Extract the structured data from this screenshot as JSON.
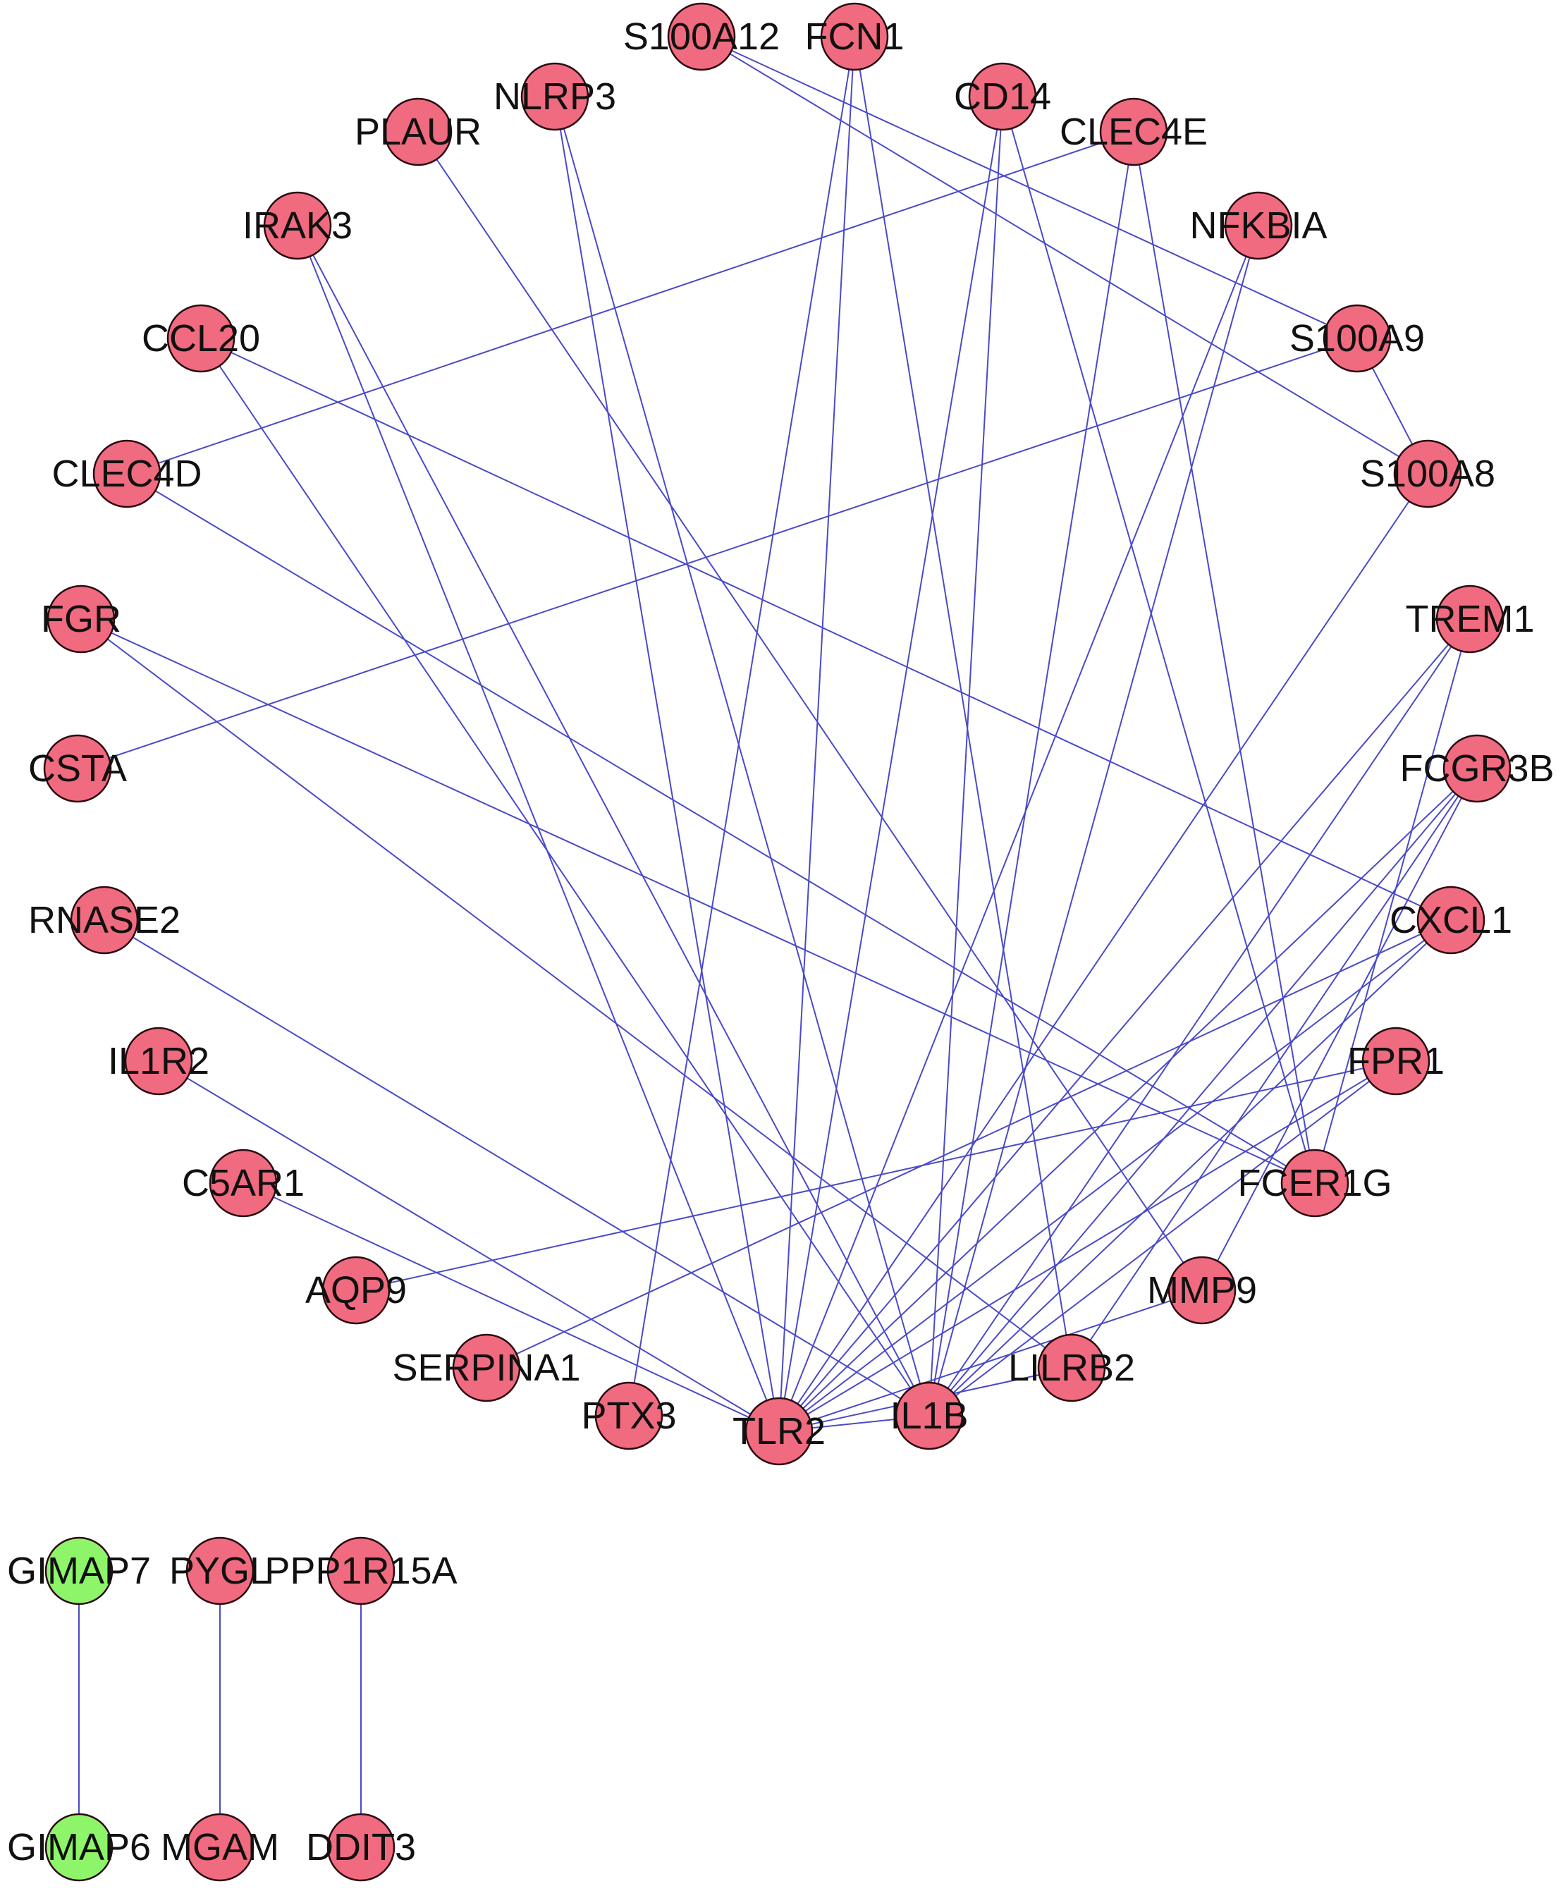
{
  "colors": {
    "up_node": "#f06b7f",
    "down_node": "#8ef56b",
    "edge": "#4a4ac8",
    "node_stroke": "#2a0a10"
  },
  "nodes": [
    {
      "id": "S100A12",
      "label": "S100A12",
      "group": "up"
    },
    {
      "id": "FCN1",
      "label": "FCN1",
      "group": "up"
    },
    {
      "id": "NLRP3",
      "label": "NLRP3",
      "group": "up"
    },
    {
      "id": "CD14",
      "label": "CD14",
      "group": "up"
    },
    {
      "id": "PLAUR",
      "label": "PLAUR",
      "group": "up"
    },
    {
      "id": "CLEC4E",
      "label": "CLEC4E",
      "group": "up"
    },
    {
      "id": "IRAK3",
      "label": "IRAK3",
      "group": "up"
    },
    {
      "id": "NFKBIA",
      "label": "NFKBIA",
      "group": "up"
    },
    {
      "id": "CCL20",
      "label": "CCL20",
      "group": "up"
    },
    {
      "id": "S100A9",
      "label": "S100A9",
      "group": "up"
    },
    {
      "id": "CLEC4D",
      "label": "CLEC4D",
      "group": "up"
    },
    {
      "id": "S100A8",
      "label": "S100A8",
      "group": "up"
    },
    {
      "id": "FGR",
      "label": "FGR",
      "group": "up"
    },
    {
      "id": "TREM1",
      "label": "TREM1",
      "group": "up"
    },
    {
      "id": "CSTA",
      "label": "CSTA",
      "group": "up"
    },
    {
      "id": "FCGR3B",
      "label": "FCGR3B",
      "group": "up"
    },
    {
      "id": "RNASE2",
      "label": "RNASE2",
      "group": "up"
    },
    {
      "id": "CXCL1",
      "label": "CXCL1",
      "group": "up"
    },
    {
      "id": "IL1R2",
      "label": "IL1R2",
      "group": "up"
    },
    {
      "id": "FPR1",
      "label": "FPR1",
      "group": "up"
    },
    {
      "id": "C5AR1",
      "label": "C5AR1",
      "group": "up"
    },
    {
      "id": "FCER1G",
      "label": "FCER1G",
      "group": "up"
    },
    {
      "id": "AQP9",
      "label": "AQP9",
      "group": "up"
    },
    {
      "id": "MMP9",
      "label": "MMP9",
      "group": "up"
    },
    {
      "id": "SERPINA1",
      "label": "SERPINA1",
      "group": "up"
    },
    {
      "id": "LILRB2",
      "label": "LILRB2",
      "group": "up"
    },
    {
      "id": "PTX3",
      "label": "PTX3",
      "group": "up"
    },
    {
      "id": "IL1B",
      "label": "IL1B",
      "group": "up"
    },
    {
      "id": "TLR2",
      "label": "TLR2",
      "group": "up"
    },
    {
      "id": "GIMAP7",
      "label": "GIMAP7",
      "group": "down"
    },
    {
      "id": "PYGL",
      "label": "PYGL",
      "group": "up"
    },
    {
      "id": "PPP1R15A",
      "label": "PPP1R15A",
      "group": "up"
    },
    {
      "id": "GIMAP6",
      "label": "GIMAP6",
      "group": "down"
    },
    {
      "id": "MGAM",
      "label": "MGAM",
      "group": "up"
    },
    {
      "id": "DDIT3",
      "label": "DDIT3",
      "group": "up"
    }
  ],
  "edges": [
    [
      "S100A12",
      "S100A8"
    ],
    [
      "S100A12",
      "S100A9"
    ],
    [
      "S100A9",
      "S100A8"
    ],
    [
      "S100A9",
      "CSTA"
    ],
    [
      "S100A8",
      "TLR2"
    ],
    [
      "FCN1",
      "TLR2"
    ],
    [
      "FCN1",
      "LILRB2"
    ],
    [
      "NLRP3",
      "IL1B"
    ],
    [
      "NLRP3",
      "TLR2"
    ],
    [
      "CD14",
      "TLR2"
    ],
    [
      "CD14",
      "IL1B"
    ],
    [
      "CD14",
      "FCER1G"
    ],
    [
      "PLAUR",
      "MMP9"
    ],
    [
      "CLEC4E",
      "CLEC4D"
    ],
    [
      "CLEC4E",
      "FCER1G"
    ],
    [
      "CLEC4E",
      "IL1B"
    ],
    [
      "IRAK3",
      "TLR2"
    ],
    [
      "IRAK3",
      "IL1B"
    ],
    [
      "NFKBIA",
      "TLR2"
    ],
    [
      "NFKBIA",
      "IL1B"
    ],
    [
      "CCL20",
      "CXCL1"
    ],
    [
      "CCL20",
      "IL1B"
    ],
    [
      "CLEC4D",
      "FCER1G"
    ],
    [
      "FGR",
      "FCER1G"
    ],
    [
      "FGR",
      "LILRB2"
    ],
    [
      "TREM1",
      "TLR2"
    ],
    [
      "TREM1",
      "IL1B"
    ],
    [
      "TREM1",
      "FCER1G"
    ],
    [
      "FCGR3B",
      "TLR2"
    ],
    [
      "FCGR3B",
      "IL1B"
    ],
    [
      "FCGR3B",
      "LILRB2"
    ],
    [
      "FCGR3B",
      "MMP9"
    ],
    [
      "CXCL1",
      "TLR2"
    ],
    [
      "CXCL1",
      "IL1B"
    ],
    [
      "CXCL1",
      "SERPINA1"
    ],
    [
      "FPR1",
      "AQP9"
    ],
    [
      "FPR1",
      "IL1B"
    ],
    [
      "FPR1",
      "TLR2"
    ],
    [
      "RNASE2",
      "IL1B"
    ],
    [
      "IL1R2",
      "TLR2"
    ],
    [
      "C5AR1",
      "TLR2"
    ],
    [
      "MMP9",
      "TLR2"
    ],
    [
      "LILRB2",
      "TLR2"
    ],
    [
      "IL1B",
      "TLR2"
    ],
    [
      "PTX3",
      "FCN1"
    ],
    [
      "GIMAP7",
      "GIMAP6"
    ],
    [
      "PYGL",
      "MGAM"
    ],
    [
      "PPP1R15A",
      "DDIT3"
    ]
  ]
}
